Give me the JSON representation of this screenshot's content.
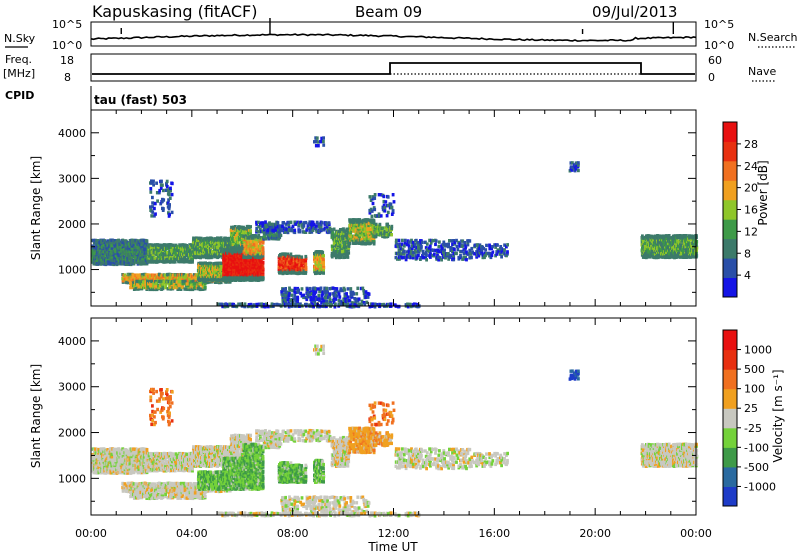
{
  "header": {
    "title": "Kapuskasing (fitACF)",
    "beam": "Beam 09",
    "date": "09/Jul/2013"
  },
  "noise_panel": {
    "left_label": "N.Sky",
    "left_ticks": [
      "10^5",
      "10^0"
    ],
    "right_ticks": [
      "10^5",
      "10^0"
    ],
    "right_label": "N.Search"
  },
  "freq_panel": {
    "left_label_top": "Freq.",
    "left_label_unit": "[MHz]",
    "left_ticks": [
      "18",
      "8"
    ],
    "right_ticks": [
      "60",
      "0"
    ],
    "right_label": "Nave"
  },
  "cpid_panel": {
    "label": "CPID",
    "text": "tau (fast) 503"
  },
  "chart_data": [
    {
      "type": "heatmap",
      "name": "power",
      "ylabel": "Slant Range [km]",
      "y_ticks": [
        1000,
        2000,
        3000,
        4000
      ],
      "ylim": [
        200,
        4500
      ],
      "xlim": [
        0,
        24
      ],
      "x_tick_labels": [
        "00:00",
        "04:00",
        "08:00",
        "12:00",
        "16:00",
        "20:00",
        "00:00"
      ],
      "colorbar_label": "Power [dB]",
      "colorbar_ticks": [
        "28",
        "24",
        "20",
        "16",
        "12",
        "8",
        "4"
      ],
      "colors": [
        "#1515e6",
        "#2a4fa8",
        "#3c7a6a",
        "#3e9a48",
        "#8fc62a",
        "#f0a020",
        "#f07020",
        "#e83010",
        "#e81010"
      ]
    },
    {
      "type": "heatmap",
      "name": "velocity",
      "ylabel": "Slant Range [km]",
      "y_ticks": [
        1000,
        2000,
        3000,
        4000
      ],
      "ylim": [
        200,
        4500
      ],
      "xlim": [
        0,
        24
      ],
      "x_tick_labels": [
        "00:00",
        "04:00",
        "08:00",
        "12:00",
        "16:00",
        "20:00",
        "00:00"
      ],
      "xlabel": "Time UT",
      "colorbar_label": "Velocity [m s⁻¹]",
      "colorbar_ticks": [
        "1000",
        "500",
        "100",
        "25",
        "-25",
        "-100",
        "-500",
        "-1000"
      ],
      "colors": [
        "#1e3cc8",
        "#2a6aa0",
        "#3e9a48",
        "#74d23a",
        "#c8c8c0",
        "#f0a020",
        "#f07020",
        "#e83010",
        "#e81010"
      ]
    }
  ]
}
